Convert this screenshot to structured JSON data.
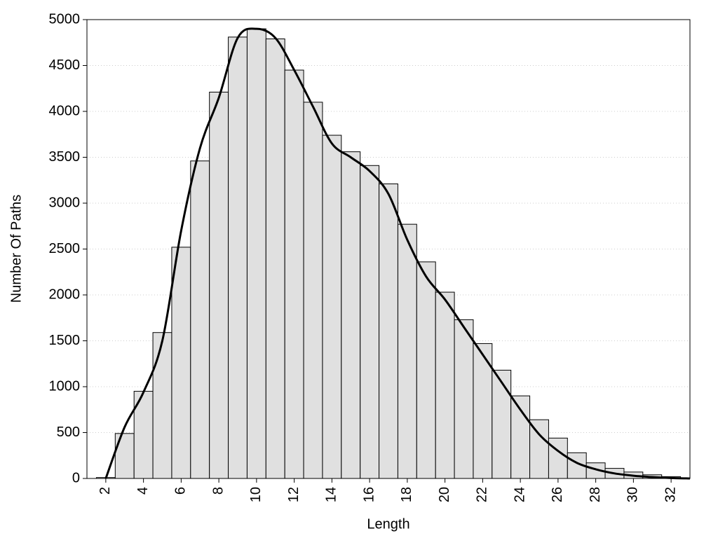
{
  "chart_data": {
    "type": "histogram",
    "x_label": "Length",
    "y_label": "Number Of Paths",
    "bins": [
      1.5,
      2.5,
      3.5,
      4.5,
      5.5,
      6.5,
      7.5,
      8.5,
      9.5,
      10.5,
      11.5,
      12.5,
      13.5,
      14.5,
      15.5,
      16.5,
      17.5,
      18.5,
      19.5,
      20.5,
      21.5,
      22.5,
      23.5,
      24.5,
      25.5,
      26.5,
      27.5,
      28.5,
      29.5,
      30.5,
      31.5,
      32.5
    ],
    "values": [
      10,
      490,
      950,
      1590,
      2520,
      3460,
      4210,
      4810,
      4900,
      4790,
      4450,
      4100,
      3740,
      3560,
      3410,
      3210,
      2770,
      2360,
      2030,
      1730,
      1470,
      1180,
      900,
      640,
      440,
      280,
      170,
      110,
      70,
      40,
      20
    ],
    "color": "#e0e0e0",
    "line": {
      "color": "#000000",
      "x": [
        2,
        3,
        4,
        5,
        6,
        7,
        8,
        9,
        10,
        11,
        12,
        13,
        14,
        15,
        16,
        17,
        18,
        19,
        20,
        21,
        22,
        23,
        24,
        25,
        26,
        27,
        28,
        29,
        30,
        31,
        32,
        33
      ],
      "values": [
        0,
        560,
        940,
        1500,
        2700,
        3600,
        4150,
        4800,
        4900,
        4800,
        4450,
        4050,
        3650,
        3500,
        3350,
        3100,
        2600,
        2200,
        1950,
        1650,
        1350,
        1050,
        750,
        480,
        300,
        170,
        100,
        55,
        30,
        15,
        5,
        0
      ]
    },
    "xlim": [
      1,
      33
    ],
    "ylim": [
      0,
      5000
    ],
    "xticks": [
      2,
      4,
      6,
      8,
      10,
      12,
      14,
      16,
      18,
      20,
      22,
      24,
      26,
      28,
      30,
      32
    ],
    "yticks": [
      0,
      500,
      1000,
      1500,
      2000,
      2500,
      3000,
      3500,
      4000,
      4500,
      5000
    ],
    "grid": true
  }
}
